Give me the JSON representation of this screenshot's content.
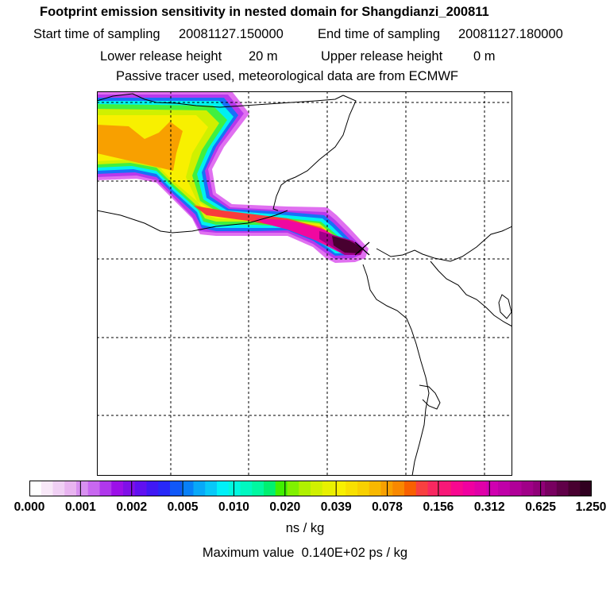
{
  "header": {
    "title": "Footprint emission sensitivity in nested domain for Shangdianzi_200811",
    "start_label": "Start time of sampling",
    "start_value": "20081127.150000",
    "end_label": "End time of sampling",
    "end_value": "20081127.180000",
    "lower_label": "Lower release height",
    "lower_value": "20 m",
    "upper_label": "Upper release height",
    "upper_value": "0 m",
    "note": "Passive tracer used, meteorological data are from ECMWF"
  },
  "map": {
    "station_marker": "release-site-cross-icon",
    "station": "Shangdianzi",
    "gridlines": "dashed"
  },
  "colorbar": {
    "tick_labels": [
      "0.000",
      "0.001",
      "0.002",
      "0.005",
      "0.010",
      "0.020",
      "0.039",
      "0.078",
      "0.156",
      "0.312",
      "0.625",
      "1.250"
    ],
    "unit": "ns / kg",
    "colors": [
      "#ffffff",
      "#f8e8f8",
      "#f0d0f4",
      "#e8b4f0",
      "#d890f0",
      "#c868f0",
      "#b038ec",
      "#9c10e8",
      "#8010e8",
      "#6010f0",
      "#4018f4",
      "#2828f8",
      "#1058f8",
      "#0880f8",
      "#08a8f8",
      "#08c8f8",
      "#00f0f8",
      "#00f8e0",
      "#00f8c0",
      "#00f8a0",
      "#00f070",
      "#40f000",
      "#80f000",
      "#b0f000",
      "#d0f000",
      "#e8f000",
      "#f8f000",
      "#f8e000",
      "#f8d000",
      "#f8b800",
      "#f8a000",
      "#f88800",
      "#f86000",
      "#f84040",
      "#f82860",
      "#f81878",
      "#f80890",
      "#f000a0",
      "#e000a8",
      "#d000b0",
      "#c000a8",
      "#b00098",
      "#a00088",
      "#900078",
      "#780060",
      "#600048",
      "#480030",
      "#300020"
    ]
  },
  "footer": {
    "max_label": "Maximum value",
    "max_value": "0.140E+02 ps / kg"
  }
}
